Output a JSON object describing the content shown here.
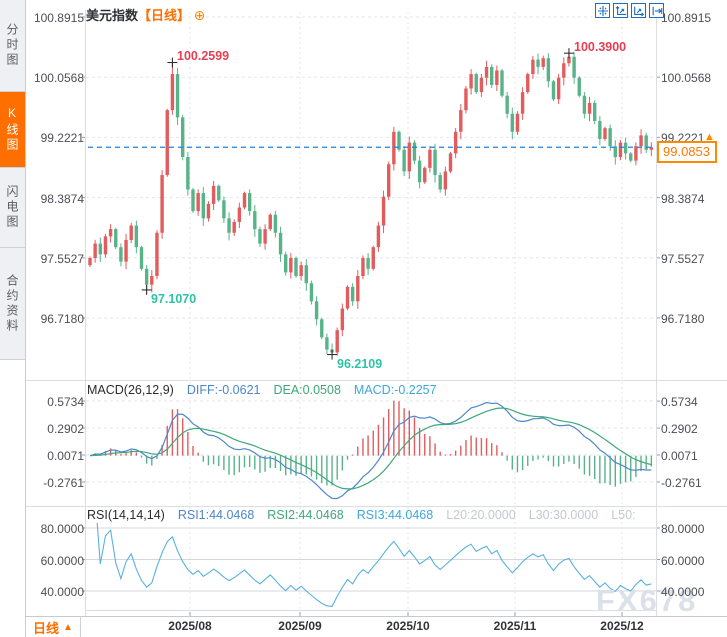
{
  "ui": {
    "sidebar": {
      "tabs": [
        {
          "label": "分时图",
          "active": false
        },
        {
          "label": "K线图",
          "active": true
        },
        {
          "label": "闪电图",
          "active": false
        },
        {
          "label": "合约资料",
          "active": false
        }
      ]
    },
    "header": {
      "title": "美元指数",
      "period": "【日线】",
      "add_symbol": "⊕"
    },
    "price_axis_labels": [
      "100.8915",
      "100.0568",
      "99.2221",
      "98.3874",
      "97.5527",
      "96.7180"
    ],
    "annotations": {
      "high1": "100.2599",
      "high2": "100.3900",
      "low1": "97.1070",
      "low2": "96.2109"
    },
    "price_badge": "99.0853",
    "badge_arrow": "▲",
    "macd_header": {
      "name": "MACD(26,12,9)",
      "diff": "DIFF:-0.0621",
      "dea": "DEA:0.0508",
      "macd": "MACD:-0.2257"
    },
    "macd_axis_labels": [
      "0.5734",
      "0.2902",
      "0.0071",
      "-0.2761"
    ],
    "rsi_header": {
      "name": "RSI(14,14,14)",
      "rsi1": "RSI1:44.0468",
      "rsi2": "RSI2:44.0468",
      "rsi3": "RSI3:44.0468",
      "l20": "L20:20.0000",
      "l30": "L30:30.0000",
      "l50": "L50:"
    },
    "rsi_axis_labels": [
      "80.0000",
      "60.0000",
      "40.0000"
    ],
    "bottom": {
      "period_button": "日线",
      "dropdown_arrow": "▲",
      "months": [
        "2025/08",
        "2025/09",
        "2025/10",
        "2025/11",
        "2025/12"
      ]
    },
    "watermark": "FX678"
  },
  "colors": {
    "up": "#e25c5e",
    "down": "#58b488",
    "accent": "#ff6f00",
    "diff_blue": "#4c87c9",
    "dea_green": "#3fa878",
    "macd_blue": "#3ea6dc",
    "rsi_line": "#5ab2dc",
    "dashed_line": "#1f80e0",
    "grid": "#e3e6ee",
    "grid_solid": "#d4d7de",
    "tick": "#9aa0ab",
    "border": "#dcdee6",
    "axis_line": "#c6c9d1",
    "annotation_red": "#e83e52",
    "annotation_teal": "#2fc2a5"
  },
  "chart_data": {
    "type": "candlestick",
    "title": "美元指数 日线",
    "first_open": 97.45,
    "closes": [
      97.55,
      97.75,
      97.6,
      97.85,
      97.95,
      97.7,
      97.5,
      97.8,
      98.0,
      97.7,
      97.4,
      97.18,
      97.3,
      97.9,
      98.7,
      99.6,
      100.1,
      99.5,
      98.95,
      98.5,
      98.2,
      98.45,
      98.1,
      98.3,
      98.55,
      98.35,
      98.1,
      97.9,
      98.05,
      98.25,
      98.45,
      98.2,
      97.95,
      97.75,
      97.95,
      98.15,
      97.9,
      97.6,
      97.35,
      97.55,
      97.3,
      97.45,
      97.2,
      96.95,
      96.7,
      96.45,
      96.28,
      96.24,
      96.55,
      96.85,
      97.15,
      96.95,
      97.3,
      97.55,
      97.4,
      97.7,
      98.0,
      98.4,
      98.85,
      99.3,
      99.05,
      98.75,
      99.15,
      98.9,
      98.6,
      98.8,
      99.05,
      98.7,
      98.5,
      98.75,
      99.0,
      99.3,
      99.6,
      99.9,
      100.1,
      99.85,
      100.05,
      100.2,
      99.95,
      100.15,
      99.8,
      99.55,
      99.3,
      99.55,
      99.85,
      100.1,
      100.3,
      100.2,
      100.32,
      100.0,
      99.75,
      100.05,
      100.25,
      100.34,
      100.05,
      99.8,
      99.55,
      99.7,
      99.45,
      99.2,
      99.35,
      99.1,
      98.95,
      99.15,
      99.0,
      98.9,
      99.1,
      99.25,
      99.05,
      99.0853
    ],
    "extremes": {
      "11": {
        "low": 97.107
      },
      "16": {
        "high": 100.2599
      },
      "47": {
        "low": 96.2109
      },
      "93": {
        "high": 100.39
      }
    },
    "marked_points": [
      {
        "idx": 16,
        "value": 100.2599,
        "side": "high"
      },
      {
        "idx": 93,
        "value": 100.39,
        "side": "high"
      },
      {
        "idx": 11,
        "value": 97.107,
        "side": "low"
      },
      {
        "idx": 47,
        "value": 96.2109,
        "side": "low"
      }
    ],
    "last_price": 99.0853,
    "price_axis_values": [
      100.8915,
      100.0568,
      99.2221,
      98.3874,
      97.5527,
      96.718
    ],
    "x_axis_labels": [
      "2025/08",
      "2025/09",
      "2025/10",
      "2025/11",
      "2025/12"
    ],
    "indicators": {
      "macd": {
        "params": [
          26,
          12,
          9
        ],
        "diff": -0.0621,
        "dea": 0.0508,
        "macd": -0.2257,
        "axis_values": [
          0.5734,
          0.2902,
          0.0071,
          -0.2761
        ]
      },
      "rsi": {
        "params": [
          14,
          14,
          14
        ],
        "rsi1": 44.0468,
        "rsi2": 44.0468,
        "rsi3": 44.0468,
        "l20": 20.0,
        "l30": 30.0,
        "axis_values": [
          80.0,
          60.0,
          40.0
        ]
      }
    }
  }
}
